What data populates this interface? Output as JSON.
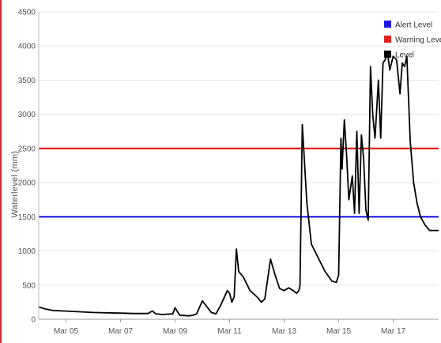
{
  "chart_data": {
    "type": "line",
    "title": "",
    "xlabel": "",
    "ylabel": "Waterlevel (mm)",
    "ylim": [
      0,
      4500
    ],
    "yticks": [
      0,
      500,
      1000,
      1500,
      2000,
      2500,
      3000,
      3500,
      4000,
      4500
    ],
    "xlim": [
      "2024-03-04",
      "2024-03-18 16:00"
    ],
    "xticks": [
      {
        "date": "2024-03-05",
        "label": "Mar 05"
      },
      {
        "date": "2024-03-07",
        "label": "Mar 07"
      },
      {
        "date": "2024-03-09",
        "label": "Mar 09"
      },
      {
        "date": "2024-03-11",
        "label": "Mar 11"
      },
      {
        "date": "2024-03-13",
        "label": "Mar 13"
      },
      {
        "date": "2024-03-15",
        "label": "Mar 15"
      },
      {
        "date": "2024-03-17",
        "label": "Mar 17"
      }
    ],
    "grid": true,
    "legend_position": "top-right",
    "thresholds": [
      {
        "name": "Alert Level",
        "value": 1500,
        "color": "#1a1ae6"
      },
      {
        "name": "Warning Level",
        "value": 2500,
        "color": "#e01f1f"
      }
    ],
    "series": [
      {
        "name": "Level",
        "color": "#000000",
        "x": [
          "2024-03-04 00:00",
          "2024-03-04 06:00",
          "2024-03-04 12:00",
          "2024-03-05 00:00",
          "2024-03-05 12:00",
          "2024-03-06 00:00",
          "2024-03-06 12:00",
          "2024-03-07 00:00",
          "2024-03-07 12:00",
          "2024-03-08 00:00",
          "2024-03-08 04:00",
          "2024-03-08 07:00",
          "2024-03-08 12:00",
          "2024-03-08 22:00",
          "2024-03-09 00:00",
          "2024-03-09 04:00",
          "2024-03-09 12:00",
          "2024-03-09 16:00",
          "2024-03-09 19:00",
          "2024-03-10 00:00",
          "2024-03-10 08:00",
          "2024-03-10 12:00",
          "2024-03-10 16:00",
          "2024-03-10 22:00",
          "2024-03-11 00:00",
          "2024-03-11 02:00",
          "2024-03-11 04:00",
          "2024-03-11 06:00",
          "2024-03-11 08:00",
          "2024-03-11 12:00",
          "2024-03-11 18:00",
          "2024-03-12 00:00",
          "2024-03-12 04:00",
          "2024-03-12 07:00",
          "2024-03-12 12:00",
          "2024-03-12 16:00",
          "2024-03-12 20:00",
          "2024-03-13 00:00",
          "2024-03-13 04:00",
          "2024-03-13 08:00",
          "2024-03-13 11:00",
          "2024-03-13 13:00",
          "2024-03-13 14:00",
          "2024-03-13 16:00",
          "2024-03-13 20:00",
          "2024-03-14 00:00",
          "2024-03-14 06:00",
          "2024-03-14 12:00",
          "2024-03-14 18:00",
          "2024-03-14 22:00",
          "2024-03-15 00:00",
          "2024-03-15 02:00",
          "2024-03-15 03:00",
          "2024-03-15 05:00",
          "2024-03-15 07:00",
          "2024-03-15 09:00",
          "2024-03-15 12:00",
          "2024-03-15 14:00",
          "2024-03-15 16:00",
          "2024-03-15 18:00",
          "2024-03-15 20:00",
          "2024-03-15 22:00",
          "2024-03-16 00:00",
          "2024-03-16 02:00",
          "2024-03-16 04:00",
          "2024-03-16 06:00",
          "2024-03-16 08:00",
          "2024-03-16 11:00",
          "2024-03-16 13:00",
          "2024-03-16 15:00",
          "2024-03-16 17:00",
          "2024-03-16 19:00",
          "2024-03-16 21:00",
          "2024-03-17 00:00",
          "2024-03-17 03:00",
          "2024-03-17 06:00",
          "2024-03-17 08:00",
          "2024-03-17 10:00",
          "2024-03-17 12:00",
          "2024-03-17 15:00",
          "2024-03-17 18:00",
          "2024-03-17 21:00",
          "2024-03-18 00:00",
          "2024-03-18 04:00",
          "2024-03-18 08:00",
          "2024-03-18 12:00",
          "2024-03-18 16:00"
        ],
        "y": [
          180,
          150,
          130,
          120,
          110,
          100,
          95,
          90,
          85,
          85,
          120,
          80,
          70,
          80,
          170,
          60,
          50,
          60,
          80,
          270,
          100,
          80,
          200,
          420,
          380,
          250,
          330,
          1030,
          700,
          620,
          420,
          330,
          250,
          300,
          880,
          650,
          450,
          420,
          460,
          420,
          380,
          420,
          500,
          2850,
          1700,
          1100,
          900,
          700,
          560,
          540,
          650,
          2650,
          2200,
          2920,
          2400,
          1750,
          2100,
          1550,
          2750,
          1550,
          2700,
          2350,
          1600,
          1450,
          3700,
          3000,
          2650,
          3500,
          2650,
          3750,
          3800,
          3900,
          3650,
          3850,
          3800,
          3300,
          3750,
          3700,
          3850,
          2600,
          2000,
          1700,
          1500,
          1380,
          1300,
          1300,
          1300
        ]
      }
    ]
  }
}
